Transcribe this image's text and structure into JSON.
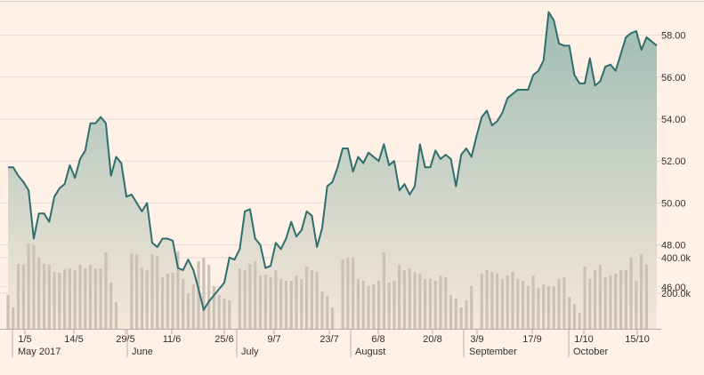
{
  "colors": {
    "background": "#fff1e5",
    "line": "#2e6e6c",
    "area_top": "#9ebcb3",
    "area_bottom": "#f5e8da",
    "volume": "#ccc1b7",
    "grid": "#e3d9cf",
    "text": "#33302e"
  },
  "chart_data": [
    {
      "type": "area",
      "ylim": [
        44,
        59
      ],
      "yticks": [
        46,
        48,
        50,
        52,
        54,
        56,
        58
      ],
      "ytick_labels": [
        "46.00",
        "48.00",
        "50.00",
        "52.00",
        "54.00",
        "56.00",
        "58.00"
      ],
      "grid": true,
      "x_tick_labels": [
        "1/5",
        "14/5",
        "29/5",
        "11/6",
        "25/6",
        "9/7",
        "23/7",
        "6/8",
        "20/8",
        "3/9",
        "17/9",
        "1/10",
        "15/10"
      ],
      "month_labels": [
        "May 2017",
        "June",
        "July",
        "August",
        "September",
        "October"
      ],
      "series": [
        {
          "values": [
            51.7,
            51.7,
            51.3,
            51.0,
            50.6,
            48.3,
            49.5,
            49.5,
            49.1,
            50.3,
            50.7,
            50.9,
            51.8,
            51.2,
            52.1,
            52.5,
            53.8,
            53.8,
            54.1,
            53.8,
            51.3,
            52.2,
            51.9,
            50.3,
            50.4,
            50.0,
            49.6,
            50.0,
            48.1,
            47.9,
            48.3,
            48.3,
            48.2,
            46.9,
            46.8,
            47.3,
            46.8,
            45.9,
            44.9,
            45.3,
            45.6,
            45.9,
            46.2,
            47.4,
            47.3,
            47.8,
            49.6,
            49.7,
            48.3,
            48.0,
            46.9,
            47.0,
            48.1,
            47.8,
            48.3,
            49.1,
            48.4,
            48.7,
            49.6,
            49.4,
            47.9,
            48.8,
            50.8,
            51.0,
            51.7,
            52.6,
            52.6,
            51.5,
            52.2,
            51.9,
            52.4,
            52.2,
            52.0,
            52.8,
            51.8,
            52.0,
            50.6,
            50.9,
            50.4,
            50.8,
            52.8,
            51.7,
            51.7,
            52.5,
            52.1,
            52.3,
            52.1,
            50.8,
            52.3,
            52.6,
            52.2,
            53.2,
            54.1,
            54.4,
            53.7,
            53.9,
            54.3,
            55.0,
            55.2,
            55.4,
            55.4,
            55.4,
            56.1,
            56.3,
            56.8,
            59.1,
            58.7,
            57.6,
            57.5,
            57.5,
            56.1,
            55.7,
            55.7,
            56.9,
            55.6,
            55.8,
            56.5,
            56.6,
            56.3,
            57.1,
            57.9,
            58.1,
            58.2,
            57.3,
            57.9,
            57.7,
            57.5
          ]
        }
      ]
    },
    {
      "type": "bar",
      "ylim": [
        0,
        500000
      ],
      "yticks": [
        200000,
        400000
      ],
      "ytick_labels": [
        "200.0k",
        "400.0k"
      ],
      "values": [
        190000,
        120000,
        365000,
        360000,
        480000,
        470000,
        400000,
        365000,
        360000,
        320000,
        315000,
        335000,
        340000,
        330000,
        360000,
        340000,
        360000,
        340000,
        340000,
        430000,
        260000,
        150000,
        0,
        0,
        425000,
        420000,
        345000,
        330000,
        420000,
        410000,
        290000,
        310000,
        315000,
        435000,
        280000,
        200000,
        250000,
        380000,
        400000,
        360000,
        240000,
        190000,
        170000,
        160000,
        0,
        340000,
        330000,
        365000,
        380000,
        300000,
        305000,
        290000,
        330000,
        280000,
        270000,
        270000,
        300000,
        280000,
        350000,
        330000,
        320000,
        210000,
        185000,
        120000,
        0,
        390000,
        400000,
        400000,
        280000,
        270000,
        240000,
        250000,
        270000,
        430000,
        260000,
        270000,
        360000,
        330000,
        340000,
        320000,
        310000,
        280000,
        280000,
        270000,
        300000,
        290000,
        190000,
        170000,
        120000,
        160000,
        240000,
        0,
        310000,
        330000,
        320000,
        310000,
        280000,
        300000,
        320000,
        280000,
        270000,
        240000,
        300000,
        230000,
        250000,
        240000,
        240000,
        280000,
        290000,
        180000,
        140000,
        90000,
        350000,
        280000,
        330000,
        360000,
        290000,
        300000,
        310000,
        330000,
        330000,
        400000,
        270000,
        420000,
        360000,
        0,
        0
      ]
    }
  ]
}
